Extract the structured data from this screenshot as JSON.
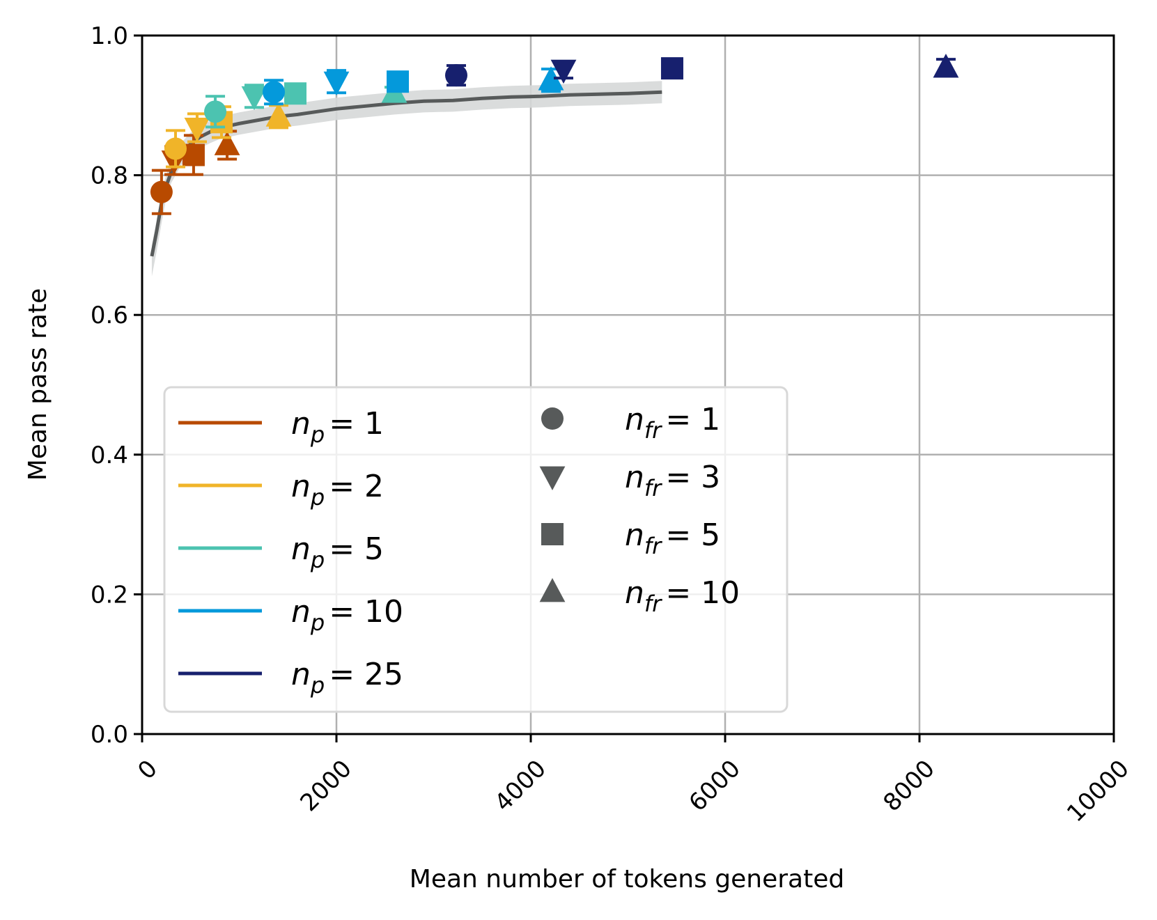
{
  "chart_data": {
    "type": "scatter",
    "title": "",
    "xlabel": "Mean number of tokens generated",
    "ylabel": "Mean pass rate",
    "xlim": [
      0,
      10000
    ],
    "ylim": [
      0.0,
      1.0
    ],
    "grid": true,
    "xticks": [
      0,
      2000,
      4000,
      6000,
      8000,
      10000
    ],
    "xtick_labels": [
      "0",
      "2000",
      "4000",
      "6000",
      "8000",
      "10000"
    ],
    "yticks": [
      0.0,
      0.2,
      0.4,
      0.6,
      0.8,
      1.0
    ],
    "ytick_labels": [
      "0.0",
      "0.2",
      "0.4",
      "0.6",
      "0.8",
      "1.0"
    ],
    "legend_position": "lower-left",
    "colors": {
      "np1": "#b84a00",
      "np2": "#f0b429",
      "np5": "#4cc3b0",
      "np10": "#0499db",
      "np25": "#17206e",
      "curve": "#575a5a",
      "band": "#d6d8d8",
      "legend_marker": "#575a5a"
    },
    "legend_colors": [
      {
        "label_var": "n",
        "label_sub": "p",
        "label_eq": "= 1",
        "color_key": "np1"
      },
      {
        "label_var": "n",
        "label_sub": "p",
        "label_eq": "= 2",
        "color_key": "np2"
      },
      {
        "label_var": "n",
        "label_sub": "p",
        "label_eq": "= 5",
        "color_key": "np5"
      },
      {
        "label_var": "n",
        "label_sub": "p",
        "label_eq": "= 10",
        "color_key": "np10"
      },
      {
        "label_var": "n",
        "label_sub": "p",
        "label_eq": "= 25",
        "color_key": "np25"
      }
    ],
    "legend_markers": [
      {
        "label_var": "n",
        "label_sub": "fr",
        "label_eq": "= 1",
        "marker": "circle"
      },
      {
        "label_var": "n",
        "label_sub": "fr",
        "label_eq": "= 3",
        "marker": "triangle-down"
      },
      {
        "label_var": "n",
        "label_sub": "fr",
        "label_eq": "= 5",
        "marker": "square"
      },
      {
        "label_var": "n",
        "label_sub": "fr",
        "label_eq": "= 10",
        "marker": "triangle-up"
      }
    ],
    "curve": {
      "x": [
        100,
        150,
        200,
        250,
        300,
        400,
        500,
        600,
        700,
        800,
        1000,
        1200,
        1400,
        1600,
        1800,
        2000,
        2300,
        2600,
        2900,
        3200,
        3500,
        3800,
        4100,
        4400,
        4700,
        5000,
        5350
      ],
      "y": [
        0.684,
        0.72,
        0.76,
        0.785,
        0.805,
        0.83,
        0.845,
        0.855,
        0.862,
        0.868,
        0.874,
        0.879,
        0.884,
        0.887,
        0.891,
        0.895,
        0.899,
        0.903,
        0.906,
        0.907,
        0.91,
        0.912,
        0.913,
        0.915,
        0.916,
        0.917,
        0.919
      ],
      "band": 0.016
    },
    "points": [
      {
        "np": 1,
        "nfr": 1,
        "x": 200,
        "y": 0.776,
        "err": 0.031
      },
      {
        "np": 1,
        "nfr": 3,
        "x": 330,
        "y": 0.821,
        "err": 0.02
      },
      {
        "np": 1,
        "nfr": 5,
        "x": 530,
        "y": 0.829,
        "err": 0.028
      },
      {
        "np": 1,
        "nfr": 10,
        "x": 875,
        "y": 0.843,
        "err": 0.02
      },
      {
        "np": 2,
        "nfr": 1,
        "x": 344,
        "y": 0.838,
        "err": 0.026
      },
      {
        "np": 2,
        "nfr": 3,
        "x": 566,
        "y": 0.868,
        "err": 0.02
      },
      {
        "np": 2,
        "nfr": 5,
        "x": 817,
        "y": 0.876,
        "err": 0.022
      },
      {
        "np": 2,
        "nfr": 10,
        "x": 1405,
        "y": 0.884,
        "err": 0.016
      },
      {
        "np": 5,
        "nfr": 1,
        "x": 753,
        "y": 0.891,
        "err": 0.022
      },
      {
        "np": 5,
        "nfr": 3,
        "x": 1154,
        "y": 0.913,
        "err": 0.016
      },
      {
        "np": 5,
        "nfr": 5,
        "x": 1577,
        "y": 0.917,
        "err": 0.01
      },
      {
        "np": 5,
        "nfr": 10,
        "x": 2595,
        "y": 0.918,
        "err": 0.008
      },
      {
        "np": 10,
        "nfr": 1,
        "x": 1355,
        "y": 0.919,
        "err": 0.017
      },
      {
        "np": 10,
        "nfr": 3,
        "x": 2000,
        "y": 0.934,
        "err": 0.016
      },
      {
        "np": 10,
        "nfr": 5,
        "x": 2631,
        "y": 0.934,
        "err": 0.01
      },
      {
        "np": 10,
        "nfr": 10,
        "x": 4208,
        "y": 0.936,
        "err": 0.016
      },
      {
        "np": 25,
        "nfr": 1,
        "x": 3233,
        "y": 0.943,
        "err": 0.014
      },
      {
        "np": 25,
        "nfr": 3,
        "x": 4337,
        "y": 0.951,
        "err": 0.012
      },
      {
        "np": 25,
        "nfr": 5,
        "x": 5455,
        "y": 0.953,
        "err": 0.008
      },
      {
        "np": 25,
        "nfr": 10,
        "x": 8272,
        "y": 0.954,
        "err": 0.012
      }
    ]
  }
}
